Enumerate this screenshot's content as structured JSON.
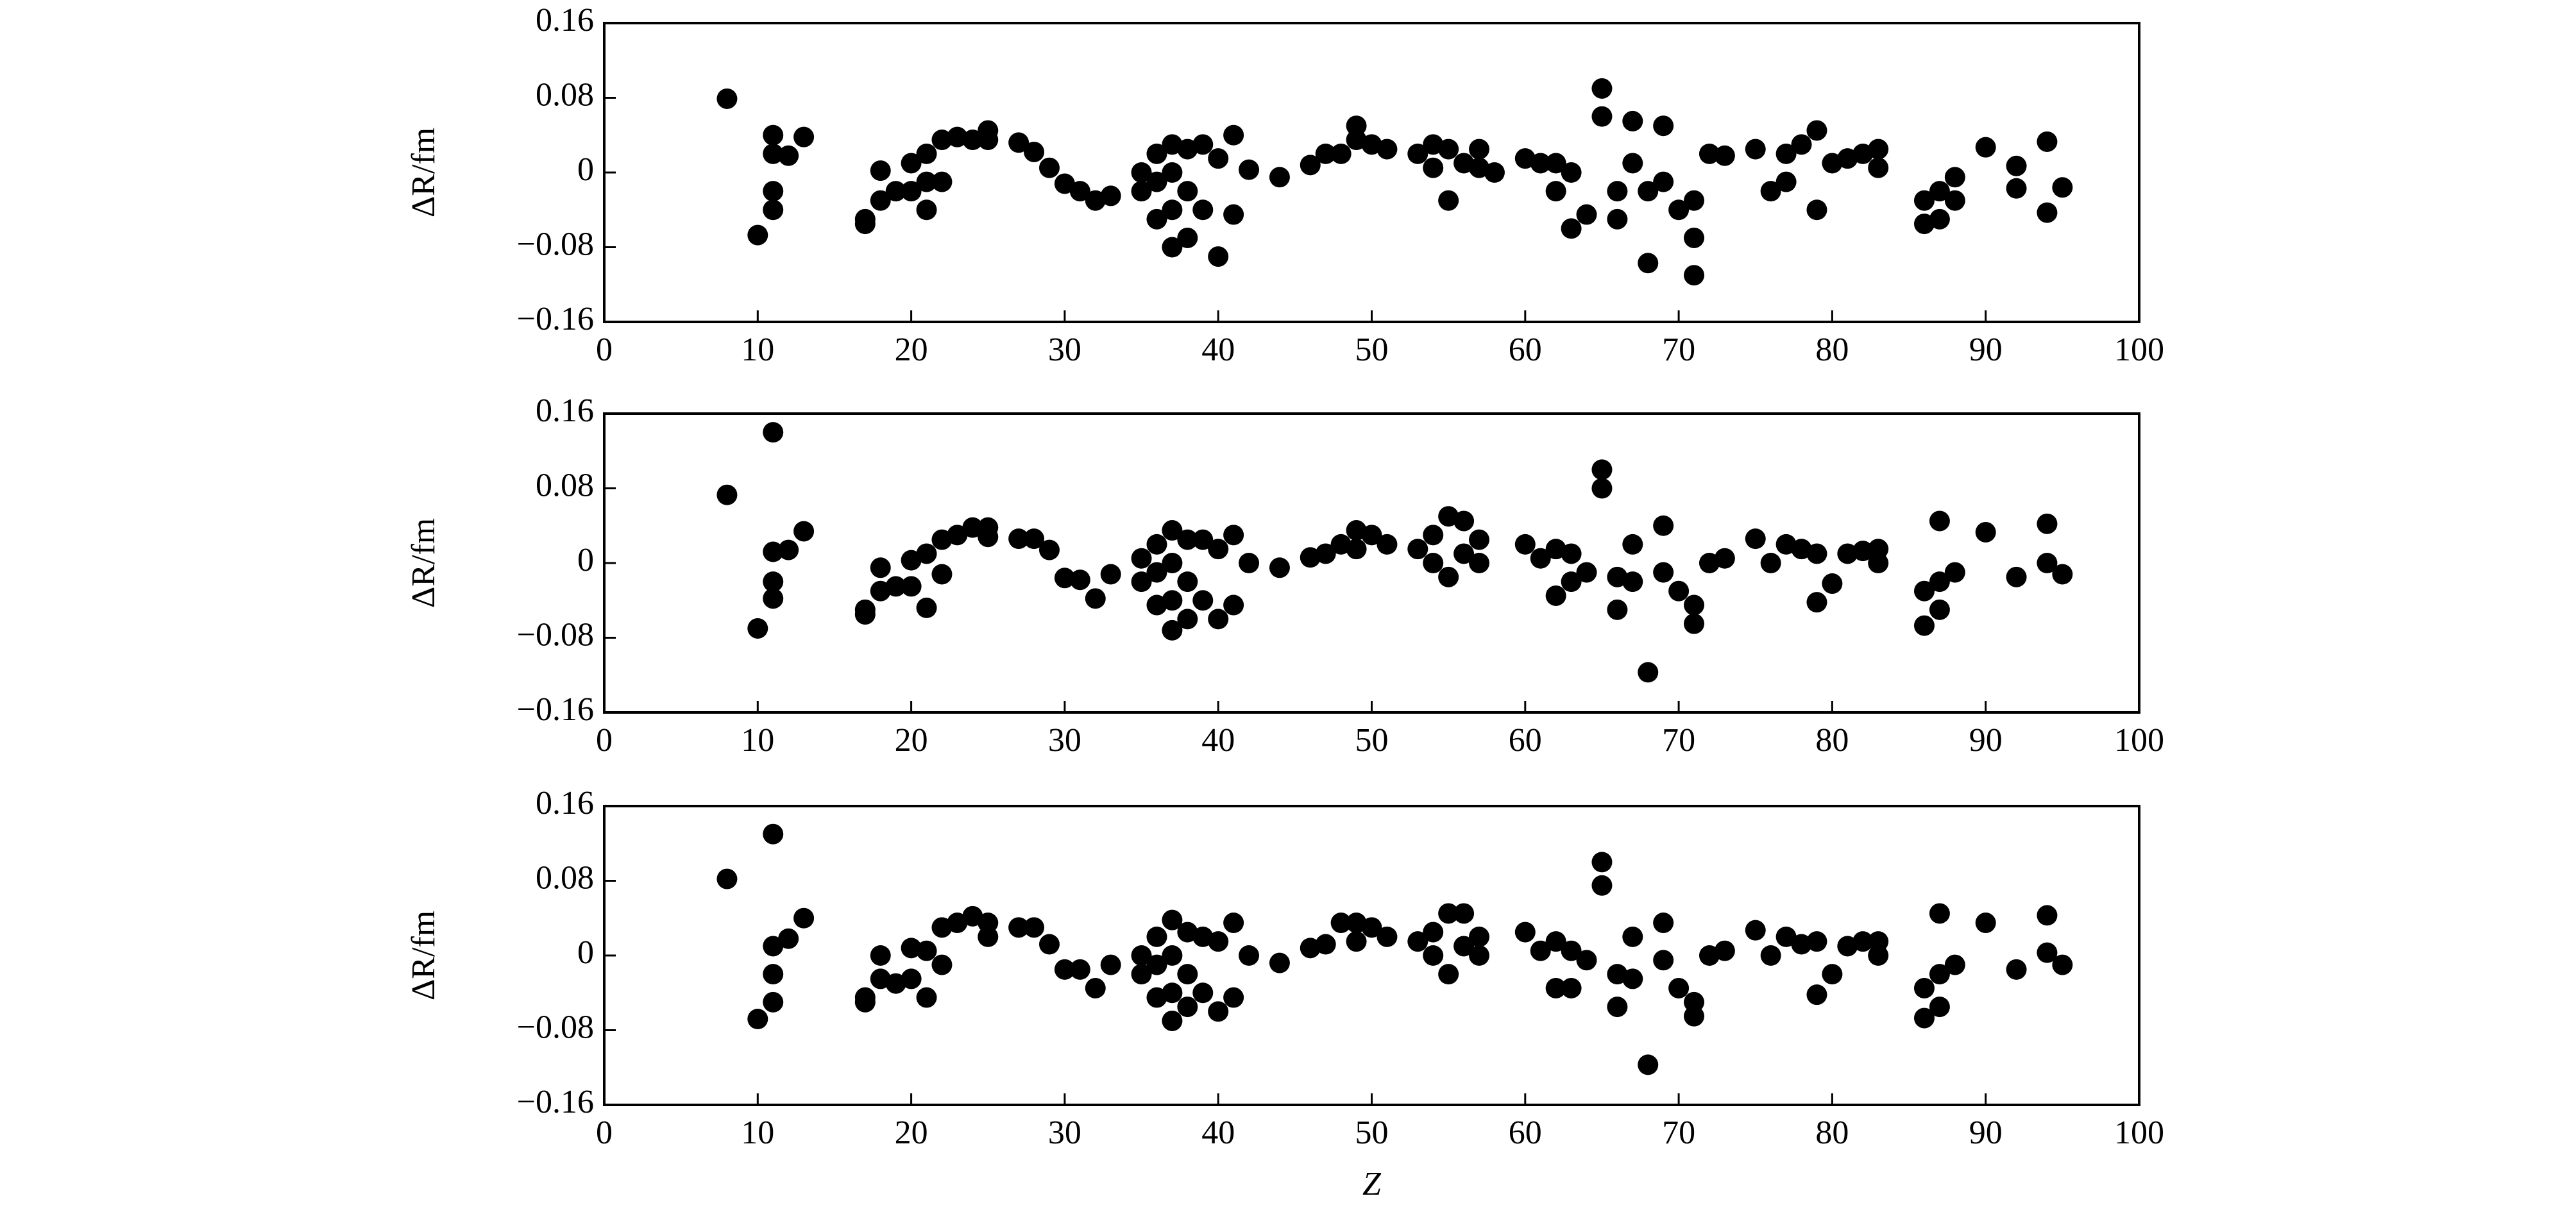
{
  "chart_data": [
    {
      "type": "scatter",
      "ylabel": "ΔR/fm",
      "color": "#000000",
      "x": [
        8,
        10,
        11,
        11,
        11,
        11,
        12,
        13,
        17,
        17,
        18,
        18,
        19,
        20,
        20,
        21,
        21,
        21,
        22,
        22,
        23,
        24,
        25,
        25,
        27,
        28,
        29,
        30,
        31,
        32,
        33,
        35,
        35,
        36,
        36,
        36,
        37,
        37,
        37,
        37,
        38,
        38,
        38,
        39,
        39,
        40,
        40,
        41,
        41,
        42,
        44,
        46,
        47,
        48,
        49,
        49,
        50,
        51,
        53,
        54,
        54,
        55,
        55,
        56,
        57,
        57,
        58,
        60,
        61,
        62,
        62,
        63,
        63,
        64,
        65,
        65,
        66,
        66,
        67,
        67,
        68,
        68,
        69,
        69,
        70,
        71,
        71,
        71,
        72,
        73,
        75,
        76,
        77,
        77,
        78,
        79,
        79,
        80,
        81,
        82,
        83,
        83,
        86,
        86,
        87,
        87,
        88,
        88,
        90,
        92,
        92,
        94,
        94,
        95
      ],
      "values": [
        0.079,
        -0.067,
        0.04,
        0.02,
        -0.02,
        -0.04,
        0.018,
        0.038,
        -0.05,
        -0.055,
        0.002,
        -0.03,
        -0.02,
        0.01,
        -0.02,
        0.02,
        -0.04,
        -0.01,
        0.035,
        -0.01,
        0.038,
        0.035,
        0.045,
        0.035,
        0.032,
        0.022,
        0.005,
        -0.012,
        -0.02,
        -0.03,
        -0.025,
        0.0,
        -0.02,
        0.02,
        -0.01,
        -0.05,
        0.03,
        0.0,
        -0.04,
        -0.08,
        0.025,
        -0.02,
        -0.07,
        0.03,
        -0.04,
        0.015,
        -0.09,
        0.04,
        -0.045,
        0.003,
        -0.005,
        0.008,
        0.02,
        0.02,
        0.05,
        0.035,
        0.03,
        0.025,
        0.02,
        0.03,
        0.005,
        0.025,
        -0.03,
        0.01,
        0.025,
        0.005,
        0.0,
        0.015,
        0.01,
        -0.02,
        0.01,
        -0.06,
        0.0,
        -0.045,
        0.09,
        0.06,
        -0.02,
        -0.05,
        0.055,
        0.01,
        -0.097,
        -0.02,
        0.05,
        -0.01,
        -0.04,
        -0.07,
        -0.11,
        -0.03,
        0.02,
        0.018,
        0.025,
        -0.02,
        0.02,
        -0.01,
        0.03,
        0.045,
        -0.04,
        0.01,
        0.015,
        0.02,
        0.025,
        0.005,
        -0.03,
        -0.055,
        -0.02,
        -0.05,
        -0.005,
        -0.03,
        0.027,
        0.007,
        -0.017,
        0.033,
        -0.043,
        -0.016
      ],
      "xlim": [
        0,
        100
      ],
      "xticks": [
        0,
        10,
        20,
        30,
        40,
        50,
        60,
        70,
        80,
        90,
        100
      ],
      "ylim": [
        -0.16,
        0.16
      ],
      "yticks": [
        {
          "value": -0.16,
          "label": "−0.16"
        },
        {
          "value": -0.08,
          "label": "−0.08"
        },
        0,
        0.08,
        0.16
      ]
    },
    {
      "type": "scatter",
      "ylabel": "ΔR/fm",
      "color": "#000000",
      "x": [
        8,
        10,
        11,
        11,
        11,
        11,
        12,
        13,
        17,
        17,
        18,
        18,
        19,
        20,
        20,
        21,
        21,
        22,
        22,
        23,
        24,
        25,
        25,
        27,
        28,
        29,
        30,
        31,
        32,
        33,
        35,
        35,
        36,
        36,
        36,
        37,
        37,
        37,
        37,
        38,
        38,
        38,
        39,
        39,
        40,
        40,
        41,
        41,
        42,
        44,
        46,
        47,
        48,
        49,
        49,
        50,
        51,
        53,
        54,
        54,
        55,
        55,
        56,
        56,
        57,
        57,
        60,
        61,
        62,
        62,
        63,
        63,
        64,
        65,
        65,
        66,
        66,
        67,
        67,
        68,
        69,
        69,
        70,
        71,
        71,
        72,
        73,
        75,
        76,
        77,
        78,
        79,
        79,
        80,
        81,
        82,
        83,
        83,
        86,
        86,
        87,
        87,
        87,
        88,
        90,
        92,
        94,
        94,
        95
      ],
      "values": [
        0.073,
        -0.07,
        0.14,
        0.012,
        -0.02,
        -0.038,
        0.014,
        0.034,
        -0.05,
        -0.055,
        -0.005,
        -0.03,
        -0.025,
        0.003,
        -0.025,
        0.01,
        -0.048,
        0.025,
        -0.012,
        0.03,
        0.038,
        0.038,
        0.028,
        0.026,
        0.026,
        0.014,
        -0.016,
        -0.018,
        -0.038,
        -0.012,
        0.005,
        -0.02,
        0.02,
        -0.01,
        -0.045,
        0.035,
        0.0,
        -0.04,
        -0.072,
        0.025,
        -0.02,
        -0.06,
        0.025,
        -0.04,
        0.015,
        -0.06,
        0.03,
        -0.045,
        0.0,
        -0.005,
        0.006,
        0.01,
        0.02,
        0.035,
        0.015,
        0.03,
        0.02,
        0.015,
        0.03,
        0.0,
        0.05,
        -0.015,
        0.045,
        0.01,
        0.025,
        0.0,
        0.02,
        0.005,
        -0.035,
        0.015,
        -0.02,
        0.01,
        -0.01,
        0.1,
        0.08,
        -0.015,
        -0.05,
        0.02,
        -0.02,
        -0.117,
        0.04,
        -0.01,
        -0.03,
        -0.045,
        -0.065,
        0.0,
        0.005,
        0.026,
        0.0,
        0.02,
        0.015,
        0.01,
        -0.042,
        -0.022,
        0.01,
        0.013,
        0.015,
        0.0,
        -0.03,
        -0.067,
        0.045,
        -0.02,
        -0.05,
        -0.01,
        0.033,
        -0.015,
        0.042,
        0.0,
        -0.012
      ],
      "xlim": [
        0,
        100
      ],
      "xticks": [
        0,
        10,
        20,
        30,
        40,
        50,
        60,
        70,
        80,
        90,
        100
      ],
      "ylim": [
        -0.16,
        0.16
      ],
      "yticks": [
        {
          "value": -0.16,
          "label": "−0.16"
        },
        {
          "value": -0.08,
          "label": "−0.08"
        },
        0,
        0.08,
        0.16
      ]
    },
    {
      "type": "scatter",
      "ylabel": "ΔR/fm",
      "xlabel": "Z",
      "color": "#000000",
      "x": [
        8,
        10,
        11,
        11,
        11,
        11,
        12,
        13,
        17,
        17,
        18,
        18,
        19,
        20,
        20,
        21,
        21,
        22,
        22,
        23,
        24,
        25,
        25,
        27,
        28,
        29,
        30,
        31,
        32,
        33,
        35,
        35,
        36,
        36,
        36,
        37,
        37,
        37,
        37,
        38,
        38,
        38,
        39,
        39,
        40,
        40,
        41,
        41,
        42,
        44,
        46,
        47,
        48,
        49,
        49,
        50,
        51,
        53,
        54,
        54,
        55,
        55,
        56,
        56,
        57,
        57,
        60,
        61,
        62,
        62,
        63,
        63,
        64,
        65,
        65,
        66,
        66,
        67,
        67,
        68,
        69,
        69,
        70,
        71,
        71,
        72,
        73,
        75,
        76,
        77,
        78,
        79,
        79,
        80,
        81,
        82,
        83,
        83,
        86,
        86,
        87,
        87,
        87,
        88,
        90,
        92,
        94,
        94,
        95
      ],
      "values": [
        0.082,
        -0.068,
        0.13,
        0.01,
        -0.02,
        -0.05,
        0.018,
        0.04,
        -0.045,
        -0.05,
        0.0,
        -0.025,
        -0.03,
        0.008,
        -0.025,
        0.005,
        -0.045,
        0.03,
        -0.01,
        0.035,
        0.042,
        0.035,
        0.02,
        0.03,
        0.03,
        0.012,
        -0.015,
        -0.015,
        -0.035,
        -0.01,
        0.0,
        -0.02,
        0.02,
        -0.01,
        -0.045,
        0.038,
        0.0,
        -0.04,
        -0.07,
        0.025,
        -0.02,
        -0.055,
        0.02,
        -0.04,
        0.015,
        -0.06,
        0.035,
        -0.045,
        0.0,
        -0.008,
        0.008,
        0.012,
        0.035,
        0.035,
        0.015,
        0.03,
        0.02,
        0.015,
        0.025,
        0.0,
        0.045,
        -0.02,
        0.045,
        0.01,
        0.02,
        0.0,
        0.025,
        0.005,
        -0.035,
        0.015,
        -0.035,
        0.005,
        -0.005,
        0.1,
        0.075,
        -0.02,
        -0.055,
        0.02,
        -0.025,
        -0.117,
        0.035,
        -0.005,
        -0.035,
        -0.05,
        -0.065,
        0.0,
        0.005,
        0.027,
        0.0,
        0.02,
        0.012,
        0.015,
        -0.042,
        -0.02,
        0.01,
        0.015,
        0.015,
        0.0,
        -0.035,
        -0.067,
        0.045,
        -0.02,
        -0.055,
        -0.01,
        0.035,
        -0.015,
        0.043,
        0.003,
        -0.01
      ],
      "xlim": [
        0,
        100
      ],
      "xticks": [
        0,
        10,
        20,
        30,
        40,
        50,
        60,
        70,
        80,
        90,
        100
      ],
      "ylim": [
        -0.16,
        0.16
      ],
      "yticks": [
        {
          "value": -0.16,
          "label": "−0.16"
        },
        {
          "value": -0.08,
          "label": "−0.08"
        },
        0,
        0.08,
        0.16
      ]
    }
  ]
}
